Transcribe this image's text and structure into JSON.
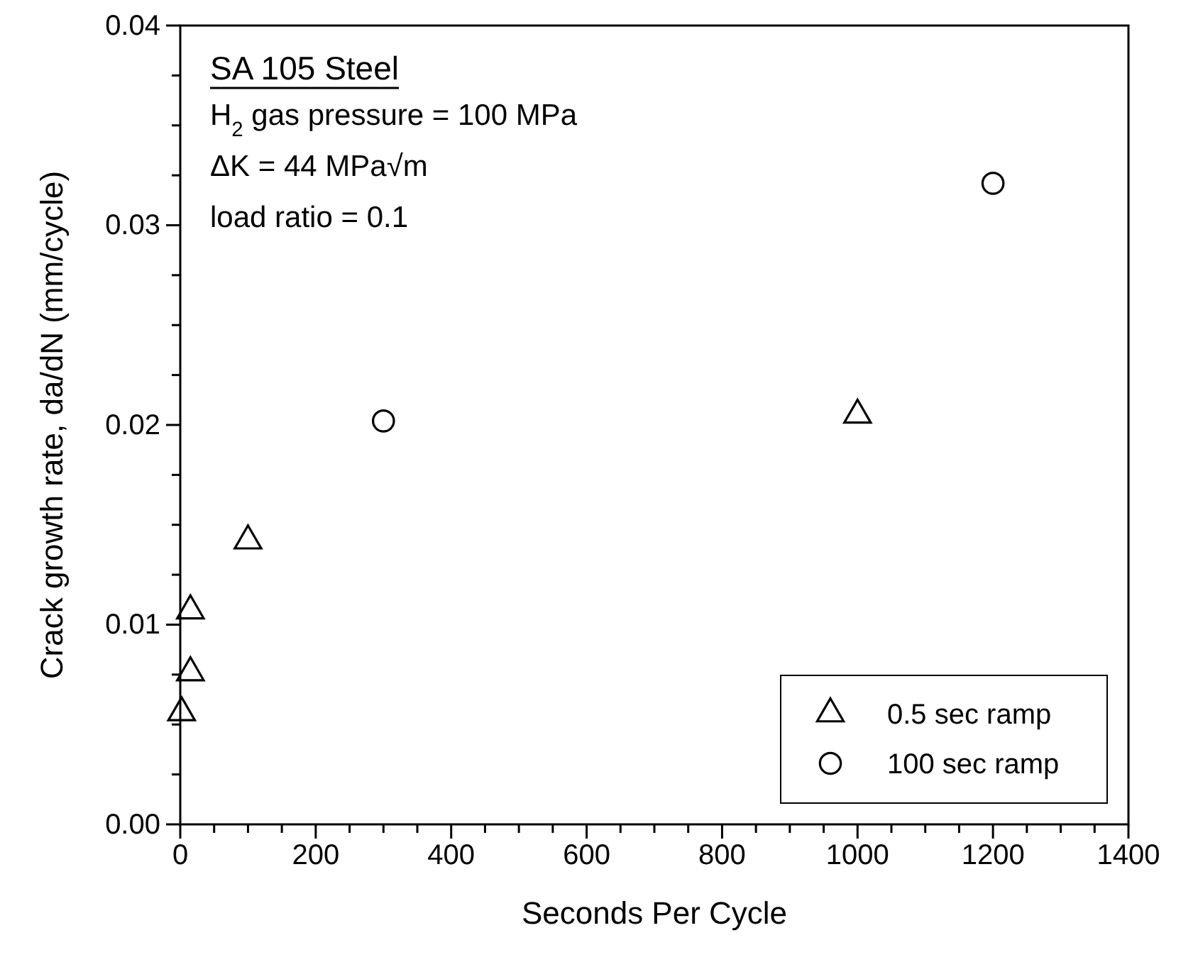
{
  "chart_data": {
    "type": "scatter",
    "xlabel": "Seconds Per Cycle",
    "ylabel": "Crack growth rate, da/dN  (mm/cycle)",
    "annotations": [
      "SA 105 Steel",
      "H$_{2}$ gas pressure = 100 MPa",
      "ΔK = 44 MPa√m",
      "load ratio = 0.1"
    ],
    "series": [
      {
        "name": "0.5 sec ramp",
        "color": "#000000",
        "marker": "triangle",
        "x": [
          2,
          15,
          15,
          100,
          1000
        ],
        "values": [
          0.0056,
          0.0076,
          0.0107,
          0.0142,
          0.0205
        ]
      },
      {
        "name": "100 sec ramp",
        "color": "#000000",
        "marker": "circle",
        "x": [
          300,
          1200
        ],
        "values": [
          0.0202,
          0.0321
        ]
      }
    ],
    "xlim": [
      0,
      1400
    ],
    "ylim": [
      0,
      0.04
    ],
    "xticks": [
      0,
      {
        "value": 50,
        "label": null
      },
      {
        "value": 100,
        "label": null
      },
      {
        "value": 150,
        "label": null
      },
      200,
      {
        "value": 250,
        "label": null
      },
      {
        "value": 300,
        "label": null
      },
      {
        "value": 350,
        "label": null
      },
      400,
      {
        "value": 450,
        "label": null
      },
      {
        "value": 500,
        "label": null
      },
      {
        "value": 550,
        "label": null
      },
      600,
      {
        "value": 650,
        "label": null
      },
      {
        "value": 700,
        "label": null
      },
      {
        "value": 750,
        "label": null
      },
      800,
      {
        "value": 850,
        "label": null
      },
      {
        "value": 900,
        "label": null
      },
      {
        "value": 950,
        "label": null
      },
      1000,
      {
        "value": 1050,
        "label": null
      },
      {
        "value": 1100,
        "label": null
      },
      {
        "value": 1150,
        "label": null
      },
      1200,
      {
        "value": 1250,
        "label": null
      },
      {
        "value": 1300,
        "label": null
      },
      {
        "value": 1350,
        "label": null
      },
      1400
    ],
    "yticks": [
      {
        "value": 0,
        "label": "0.00"
      },
      {
        "value": 0.0025,
        "label": null
      },
      {
        "value": 0.005,
        "label": null
      },
      {
        "value": 0.0075,
        "label": null
      },
      {
        "value": 0.01,
        "label": "0.01"
      },
      {
        "value": 0.0125,
        "label": null
      },
      {
        "value": 0.015,
        "label": null
      },
      {
        "value": 0.0175,
        "label": null
      },
      {
        "value": 0.02,
        "label": "0.02"
      },
      {
        "value": 0.0225,
        "label": null
      },
      {
        "value": 0.025,
        "label": null
      },
      {
        "value": 0.0275,
        "label": null
      },
      {
        "value": 0.03,
        "label": "0.03"
      },
      {
        "value": 0.0325,
        "label": null
      },
      {
        "value": 0.035,
        "label": null
      },
      {
        "value": 0.0375,
        "label": null
      },
      {
        "value": 0.04,
        "label": "0.04"
      }
    ],
    "grid": false,
    "legend": "bottom right"
  }
}
